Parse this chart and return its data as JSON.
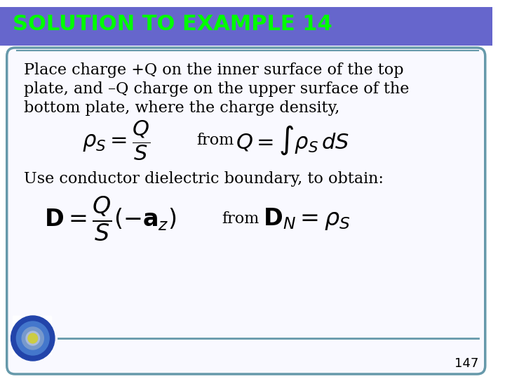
{
  "title": "SOLUTION TO EXAMPLE 14",
  "title_bg_color": "#6666cc",
  "title_text_color": "#00ff00",
  "title_fontsize": 22,
  "slide_bg_color": "#ffffff",
  "border_color": "#6699aa",
  "text1": "Place charge +Q on the inner surface of the top",
  "text2": "plate, and –Q charge on the upper surface of the",
  "text3": "bottom plate, where the charge density,",
  "text4": "Use conductor dielectric boundary, to obtain:",
  "from_word": "from",
  "page_number": "147",
  "body_text_color": "#000000",
  "body_fontsize": 16,
  "formula_fontsize": 22,
  "formula2_fontsize": 24
}
